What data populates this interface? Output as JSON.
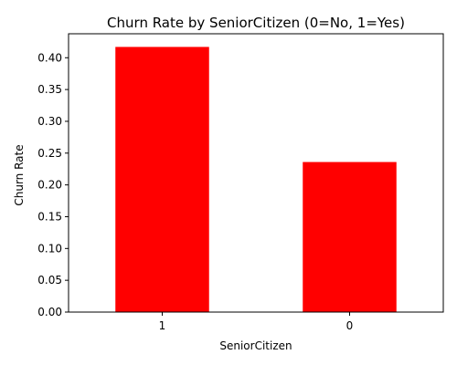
{
  "chart_data": {
    "type": "bar",
    "title": "Churn Rate by SeniorCitizen (0=No, 1=Yes)",
    "xlabel": "SeniorCitizen",
    "ylabel": "Churn Rate",
    "categories": [
      "1",
      "0"
    ],
    "values": [
      0.417,
      0.236
    ],
    "ylim": [
      0,
      0.4377
    ],
    "yticks": [
      0.0,
      0.05,
      0.1,
      0.15,
      0.2,
      0.25,
      0.3,
      0.35,
      0.4
    ],
    "ytick_labels": [
      "0.00",
      "0.05",
      "0.10",
      "0.15",
      "0.20",
      "0.25",
      "0.30",
      "0.35",
      "0.40"
    ],
    "bar_color": "#ff0000",
    "grid": false,
    "legend": "none"
  }
}
